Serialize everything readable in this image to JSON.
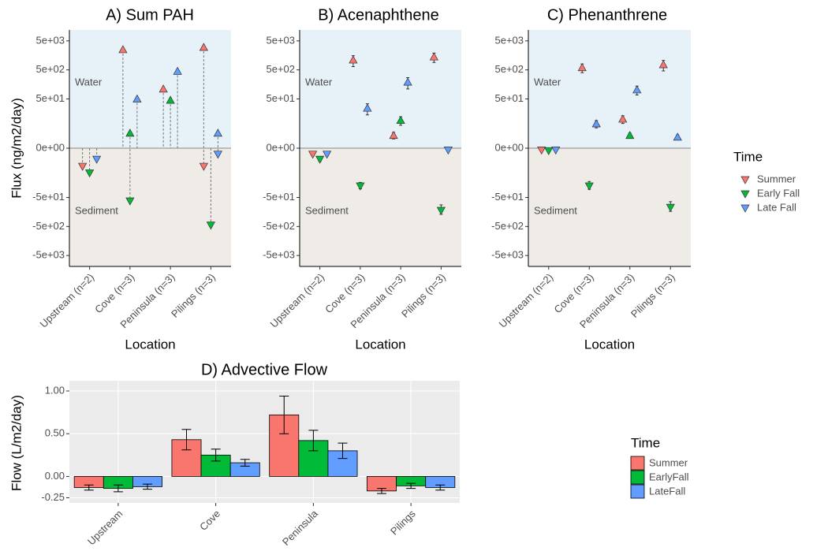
{
  "legend": {
    "title": "Time",
    "series": [
      {
        "name": "Summer",
        "color": "#F8766D"
      },
      {
        "name": "Early Fall",
        "color": "#00BA38"
      },
      {
        "name": "Late Fall",
        "color": "#619CFF"
      }
    ]
  },
  "chart_data": [
    {
      "type": "water_sediment",
      "title": "A) Sum PAH",
      "y_label": "Flux (ng/m2/day)",
      "x_label": "Location",
      "categories": [
        "Upstream (n=2)",
        "Cove (n=3)",
        "Peninsula (n=3)",
        "Pilings (n=3)"
      ],
      "yscale": "pseudo_log",
      "ylim": [
        -11900,
        11900
      ],
      "yticks": [
        {
          "value": 5000,
          "label": "5e+03"
        },
        {
          "value": 500,
          "label": "5e+02"
        },
        {
          "value": 50,
          "label": "5e+01"
        },
        {
          "value": 0,
          "label": "0e+00"
        },
        {
          "value": -50,
          "label": "-5e+01"
        },
        {
          "value": -500,
          "label": "-5e+02"
        },
        {
          "value": -5000,
          "label": "-5e+03"
        }
      ],
      "annotations": [
        "Water",
        "Sediment"
      ],
      "series": [
        {
          "water": [
            null,
            2500,
            110,
            3000
          ],
          "sediment": [
            -4,
            null,
            null,
            -4
          ]
        },
        {
          "water": [
            null,
            3,
            45,
            null
          ],
          "sediment": [
            -7,
            -66,
            null,
            -450
          ]
        },
        {
          "water": [
            null,
            50,
            450,
            3
          ],
          "sediment": [
            -2,
            null,
            null,
            -1
          ]
        }
      ]
    },
    {
      "type": "pointrange",
      "title": "B) Acenaphthene",
      "x_label": "Location",
      "categories": [
        "Upstream (n=2)",
        "Cove (n=3)",
        "Peninsula (n=3)",
        "Pilings (n=3)"
      ],
      "yscale": "pseudo_log",
      "ylim": [
        -11900,
        11900
      ],
      "yticks": [
        {
          "value": 5000,
          "label": "5e+03"
        },
        {
          "value": 500,
          "label": "5e+02"
        },
        {
          "value": 50,
          "label": "5e+01"
        },
        {
          "value": 0,
          "label": "0e+00"
        },
        {
          "value": -50,
          "label": "-5e+01"
        },
        {
          "value": -500,
          "label": "-5e+02"
        },
        {
          "value": -5000,
          "label": "-5e+03"
        }
      ],
      "annotations": [
        "Water",
        "Sediment"
      ],
      "series": [
        {
          "values": [
            -1,
            1100,
            2.4,
            1400
          ],
          "errors": [
            0.3,
            450,
            0.8,
            500
          ]
        },
        {
          "values": [
            -2,
            -20,
            9,
            -140
          ],
          "errors": [
            0.5,
            5,
            3,
            50
          ]
        },
        {
          "values": [
            -1,
            24,
            190,
            -0.3
          ],
          "errors": [
            0.3,
            10,
            80,
            0.2
          ]
        }
      ]
    },
    {
      "type": "pointrange",
      "title": "C) Phenanthrene",
      "x_label": "Location",
      "categories": [
        "Upstream (n=2)",
        "Cove (n=3)",
        "Peninsula (n=3)",
        "Pilings (n=3)"
      ],
      "yscale": "pseudo_log",
      "ylim": [
        -11900,
        11900
      ],
      "yticks": [
        {
          "value": 5000,
          "label": "5e+03"
        },
        {
          "value": 500,
          "label": "5e+02"
        },
        {
          "value": 50,
          "label": "5e+01"
        },
        {
          "value": 0,
          "label": "0e+00"
        },
        {
          "value": -50,
          "label": "-5e+01"
        },
        {
          "value": -500,
          "label": "-5e+02"
        },
        {
          "value": -5000,
          "label": "-5e+03"
        }
      ],
      "annotations": [
        "Water",
        "Sediment"
      ],
      "series": [
        {
          "values": [
            -0.3,
            600,
            10,
            760
          ],
          "errors": [
            0.1,
            200,
            3,
            300
          ]
        },
        {
          "values": [
            -0.4,
            -20,
            2.4,
            -110
          ],
          "errors": [
            0.1,
            6,
            0.6,
            40
          ]
        },
        {
          "values": [
            -0.3,
            6.8,
            103,
            2
          ],
          "errors": [
            0.1,
            2,
            35,
            0.5
          ]
        }
      ]
    },
    {
      "type": "bar",
      "title": "D) Advective Flow",
      "y_label": "Flow (L/m2/day)",
      "legend_title": "Time",
      "categories": [
        "Upstream",
        "Cove",
        "Peninsula",
        "Pilings"
      ],
      "ylim": [
        -0.31,
        1.12
      ],
      "yticks": [
        {
          "value": 1,
          "label": "1.00"
        },
        {
          "value": 0.5,
          "label": "0.50"
        },
        {
          "value": 0,
          "label": "0.00"
        },
        {
          "value": -0.25,
          "label": "-0.25"
        }
      ],
      "grid": true,
      "series": [
        {
          "name": "Summer",
          "color": "#F8766D",
          "values": [
            -0.13,
            0.43,
            0.72,
            -0.17
          ],
          "errors": [
            0.03,
            0.12,
            0.22,
            0.03
          ]
        },
        {
          "name": "EarlyFall",
          "color": "#00BA38",
          "values": [
            -0.14,
            0.25,
            0.42,
            -0.11
          ],
          "errors": [
            0.04,
            0.07,
            0.12,
            0.03
          ]
        },
        {
          "name": "LateFall",
          "color": "#619CFF",
          "values": [
            -0.12,
            0.16,
            0.3,
            -0.13
          ],
          "errors": [
            0.03,
            0.04,
            0.09,
            0.03
          ]
        }
      ]
    }
  ]
}
